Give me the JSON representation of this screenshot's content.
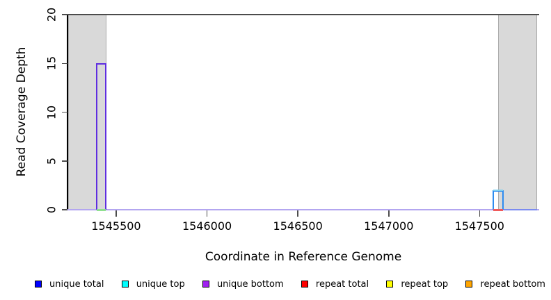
{
  "figure": {
    "x_axis_title": "Coordinate in Reference Genome",
    "y_axis_title": "Read Coverage Depth"
  },
  "chart_data": {
    "type": "area",
    "subtype": "step-coverage-pileup",
    "title": "",
    "xlabel": "Coordinate in Reference Genome",
    "ylabel": "Read Coverage Depth",
    "xlim": [
      1545232,
      1547828
    ],
    "ylim": [
      0,
      20
    ],
    "x_ticks": [
      1545500,
      1546000,
      1546500,
      1547000,
      1547500
    ],
    "y_ticks": [
      0,
      5,
      10,
      15,
      20
    ],
    "grid": false,
    "legend_position": "bottom",
    "cap_line_y": 20,
    "cap_line_color": "#4c4c4c",
    "shaded_regions": [
      {
        "x_start": 1545236,
        "x_end": 1545448,
        "fill": "#d9d9d9",
        "border": "#ababab"
      },
      {
        "x_start": 1547602,
        "x_end": 1547816,
        "fill": "#d9d9d9",
        "border": "#ababab"
      }
    ],
    "baseline": {
      "y": 0,
      "color": "#b3a6f0",
      "segments": [
        {
          "x_start": 1547634,
          "x_end": 1547816,
          "color": "#7b8bf0"
        }
      ]
    },
    "coverage_peaks": [
      {
        "series": "unique bottom",
        "x_start": 1545389,
        "x_end": 1545448,
        "depth": 15,
        "stroke": "#5f2ee0",
        "base_color": "#8fe08f"
      },
      {
        "series": "unique total / unique top",
        "x_start": 1547571,
        "x_end": 1547634,
        "depth": 2,
        "stroke": "#2e8cf0",
        "top_color": "#7fd0f0",
        "base_color": "#f05a5a"
      }
    ],
    "series": [
      {
        "name": "unique total",
        "color": "#0000ff"
      },
      {
        "name": "unique top",
        "color": "#00ffff"
      },
      {
        "name": "unique bottom",
        "color": "#a020f0"
      },
      {
        "name": "repeat total",
        "color": "#ff0000"
      },
      {
        "name": "repeat top",
        "color": "#ffff00"
      },
      {
        "name": "repeat bottom",
        "color": "#ffa500"
      }
    ]
  }
}
